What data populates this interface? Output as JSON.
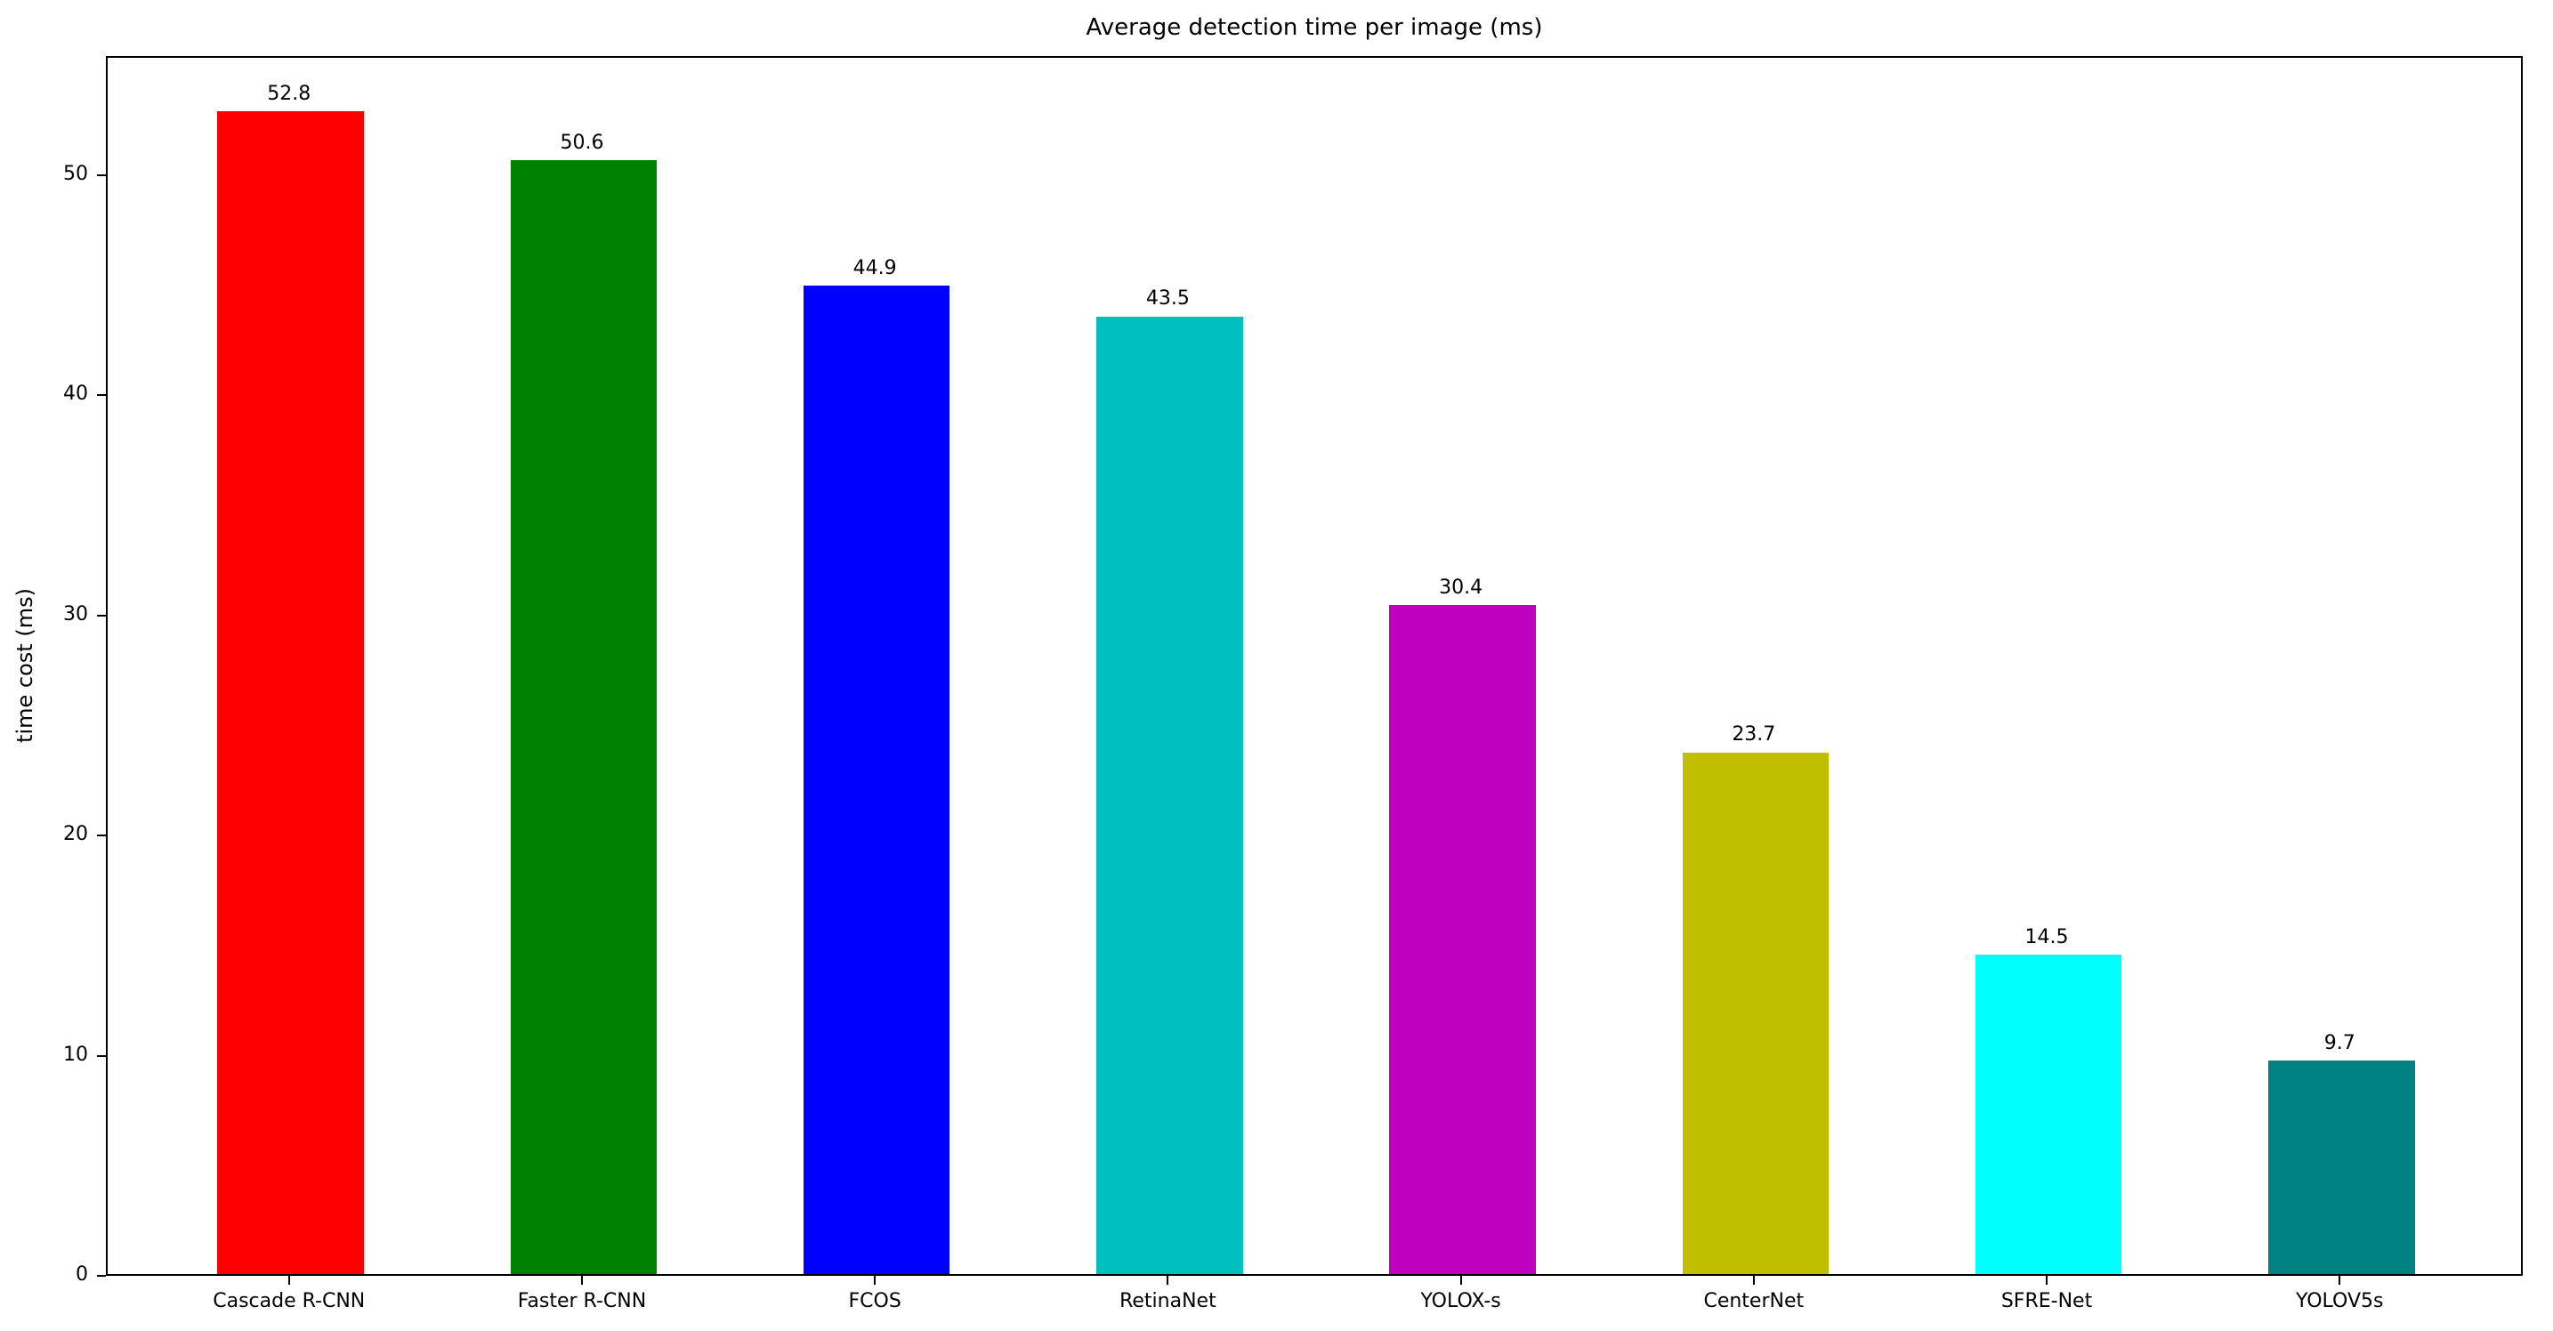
{
  "figure": {
    "title": "Average detection time per image (ms)",
    "ylabel": "time cost (ms)"
  },
  "chart_data": {
    "type": "bar",
    "title": "Average detection time per image (ms)",
    "xlabel": "",
    "ylabel": "time cost (ms)",
    "categories": [
      "Cascade R-CNN",
      "Faster R-CNN",
      "FCOS",
      "RetinaNet",
      "YOLOX-s",
      "CenterNet",
      "SFRE-Net",
      "YOLOV5s"
    ],
    "values": [
      52.8,
      50.6,
      44.9,
      43.5,
      30.4,
      23.7,
      14.5,
      9.7
    ],
    "bar_labels": [
      "52.8",
      "50.6",
      "44.9",
      "43.5",
      "30.4",
      "23.7",
      "14.5",
      "9.7"
    ],
    "bar_colors": [
      "#ff0000",
      "#008000",
      "#0000ff",
      "#00bfbf",
      "#bf00bf",
      "#bfbf00",
      "#00ffff",
      "#008080"
    ],
    "yticks": [
      0,
      10,
      20,
      30,
      40,
      50
    ],
    "ytick_labels": [
      "0",
      "10",
      "20",
      "30",
      "40",
      "50"
    ],
    "ylim": [
      0,
      55.4
    ],
    "grid": false,
    "legend_position": "none"
  }
}
